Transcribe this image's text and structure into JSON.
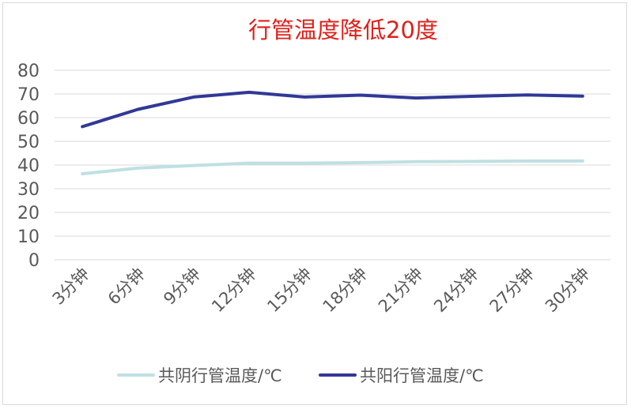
{
  "chart_data": {
    "type": "line",
    "title": "行管温度降低20度",
    "title_color": "#e0201b",
    "categories": [
      "3分钟",
      "6分钟",
      "9分钟",
      "12分钟",
      "15分钟",
      "18分钟",
      "21分钟",
      "24分钟",
      "27分钟",
      "30分钟"
    ],
    "series": [
      {
        "name": "共阴行管温度/℃",
        "color": "#bfe0e2",
        "values": [
          36.3,
          38.7,
          39.8,
          40.8,
          40.8,
          41.0,
          41.4,
          41.5,
          41.7,
          41.7
        ]
      },
      {
        "name": "共阳行管温度/℃",
        "color": "#323896",
        "values": [
          56.2,
          63.5,
          68.7,
          70.7,
          68.7,
          69.5,
          68.3,
          69.0,
          69.6,
          69.1
        ]
      }
    ],
    "ylim": [
      0,
      80
    ],
    "yticks": [
      "0",
      "10",
      "20",
      "30",
      "40",
      "50",
      "60",
      "70",
      "80"
    ],
    "grid": true,
    "legend": "bottom"
  }
}
